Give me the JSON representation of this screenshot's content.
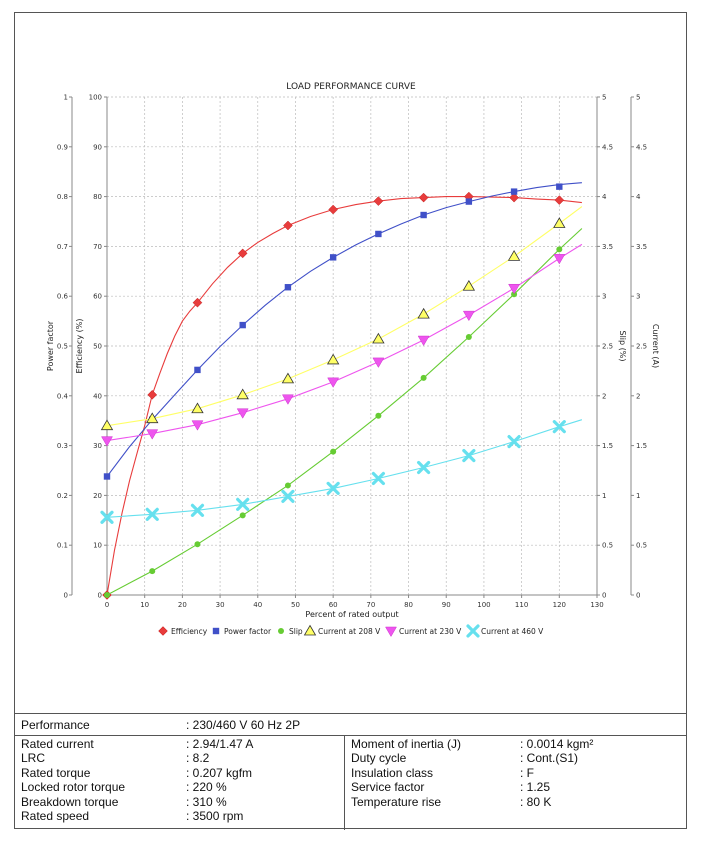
{
  "chart_data": {
    "type": "line",
    "title": "LOAD PERFORMANCE CURVE",
    "xlabel": "Percent of rated output",
    "xlim": [
      0,
      130
    ],
    "x_ticks": [
      "0",
      "10",
      "20",
      "30",
      "40",
      "50",
      "60",
      "70",
      "80",
      "90",
      "100",
      "110",
      "120",
      "130"
    ],
    "axes": {
      "power_factor": {
        "label": "Power factor",
        "ticks": [
          "0",
          "0.1",
          "0.2",
          "0.3",
          "0.4",
          "0.5",
          "0.6",
          "0.7",
          "0.8",
          "0.9",
          "1"
        ],
        "range": [
          0,
          1
        ]
      },
      "efficiency": {
        "label": "Efficiency (%)",
        "ticks": [
          "0",
          "10",
          "20",
          "30",
          "40",
          "50",
          "60",
          "70",
          "80",
          "90",
          "100"
        ],
        "range": [
          0,
          100
        ]
      },
      "slip": {
        "label": "Slip (%)",
        "ticks": [
          "0",
          "0.5",
          "1",
          "1.5",
          "2",
          "2.5",
          "3",
          "3.5",
          "4",
          "4.5",
          "5"
        ],
        "range": [
          0,
          5
        ]
      },
      "current": {
        "label": "Current (A)",
        "ticks": [
          "0",
          "0.5",
          "1",
          "1.5",
          "2",
          "2.5",
          "3",
          "3.5",
          "4",
          "4.5",
          "5"
        ],
        "range": [
          0,
          5
        ]
      }
    },
    "grid": true,
    "legend_position": "bottom",
    "series": [
      {
        "name": "Efficiency",
        "axis": "efficiency",
        "color": "#e83c3c",
        "marker": "diamond",
        "x": [
          0,
          12,
          24,
          36,
          48,
          60,
          72,
          84,
          96,
          108,
          120
        ],
        "y": [
          0,
          40.2,
          58.7,
          68.6,
          74.2,
          77.4,
          79.1,
          79.8,
          80.0,
          79.8,
          79.3
        ],
        "curve_x": [
          0,
          2,
          4,
          6,
          8,
          10,
          12,
          14,
          16,
          18,
          20,
          22,
          24,
          28,
          32,
          36,
          40,
          44,
          48,
          54,
          60,
          66,
          72,
          78,
          84,
          90,
          96,
          102,
          108,
          114,
          120,
          126
        ],
        "curve_y": [
          0,
          9,
          16.5,
          23,
          28.6,
          34,
          40.2,
          44.5,
          48.5,
          52,
          55,
          57,
          58.7,
          62.5,
          65.8,
          68.6,
          70.8,
          72.6,
          74.2,
          76,
          77.4,
          78.4,
          79.1,
          79.6,
          79.8,
          80,
          80,
          79.9,
          79.8,
          79.5,
          79.3,
          78.8
        ]
      },
      {
        "name": "Power factor",
        "axis": "power_factor",
        "color": "#4050c8",
        "marker": "square",
        "x": [
          0,
          12,
          24,
          36,
          48,
          60,
          72,
          84,
          96,
          108,
          120
        ],
        "y": [
          0.238,
          0.352,
          0.452,
          0.542,
          0.618,
          0.678,
          0.725,
          0.763,
          0.79,
          0.81,
          0.82
        ],
        "curve_x": [
          0,
          6,
          12,
          18,
          24,
          30,
          36,
          42,
          48,
          54,
          60,
          66,
          72,
          78,
          84,
          90,
          96,
          102,
          108,
          114,
          120,
          126
        ],
        "curve_y": [
          0.238,
          0.298,
          0.352,
          0.402,
          0.452,
          0.499,
          0.542,
          0.582,
          0.618,
          0.65,
          0.678,
          0.703,
          0.725,
          0.745,
          0.763,
          0.778,
          0.79,
          0.801,
          0.81,
          0.818,
          0.824,
          0.828
        ]
      },
      {
        "name": "Slip",
        "axis": "slip",
        "color": "#66cc33",
        "marker": "circle",
        "x": [
          0,
          12,
          24,
          36,
          48,
          60,
          72,
          84,
          96,
          108,
          120
        ],
        "y": [
          0,
          0.24,
          0.51,
          0.8,
          1.1,
          1.44,
          1.8,
          2.18,
          2.59,
          3.02,
          3.47
        ],
        "curve_x": [
          0,
          12,
          24,
          36,
          48,
          60,
          72,
          84,
          96,
          108,
          120,
          126
        ],
        "curve_y": [
          0,
          0.24,
          0.51,
          0.8,
          1.1,
          1.44,
          1.8,
          2.18,
          2.59,
          3.02,
          3.47,
          3.68
        ]
      },
      {
        "name": "Current at 208 V",
        "axis": "current",
        "color": "#ffff66",
        "marker": "triangle-up",
        "x": [
          0,
          12,
          24,
          36,
          48,
          60,
          72,
          84,
          96,
          108,
          120
        ],
        "y": [
          1.7,
          1.77,
          1.87,
          2.01,
          2.17,
          2.36,
          2.57,
          2.82,
          3.1,
          3.4,
          3.73
        ],
        "curve_x": [
          0,
          12,
          24,
          36,
          48,
          60,
          72,
          84,
          96,
          108,
          120,
          126
        ],
        "curve_y": [
          1.7,
          1.77,
          1.87,
          2.01,
          2.17,
          2.36,
          2.57,
          2.82,
          3.1,
          3.4,
          3.73,
          3.9
        ]
      },
      {
        "name": "Current at 230 V",
        "axis": "current",
        "color": "#ee55ee",
        "marker": "triangle-down",
        "x": [
          0,
          12,
          24,
          36,
          48,
          60,
          72,
          84,
          96,
          108,
          120
        ],
        "y": [
          1.55,
          1.62,
          1.71,
          1.83,
          1.97,
          2.14,
          2.34,
          2.56,
          2.81,
          3.08,
          3.38
        ],
        "curve_x": [
          0,
          12,
          24,
          36,
          48,
          60,
          72,
          84,
          96,
          108,
          120,
          126
        ],
        "curve_y": [
          1.55,
          1.62,
          1.71,
          1.83,
          1.97,
          2.14,
          2.34,
          2.56,
          2.81,
          3.08,
          3.38,
          3.52
        ]
      },
      {
        "name": "Current at 460 V",
        "axis": "current",
        "color": "#66e0ee",
        "marker": "x",
        "x": [
          0,
          12,
          24,
          36,
          48,
          60,
          72,
          84,
          96,
          108,
          120
        ],
        "y": [
          0.78,
          0.81,
          0.85,
          0.91,
          0.99,
          1.07,
          1.17,
          1.28,
          1.4,
          1.54,
          1.69
        ],
        "curve_x": [
          0,
          12,
          24,
          36,
          48,
          60,
          72,
          84,
          96,
          108,
          120,
          126
        ],
        "curve_y": [
          0.78,
          0.81,
          0.85,
          0.91,
          0.99,
          1.07,
          1.17,
          1.28,
          1.4,
          1.54,
          1.69,
          1.76
        ]
      }
    ]
  },
  "specs": {
    "performance_label": "Performance",
    "performance_value": ": 230/460 V 60 Hz 2P",
    "left": [
      {
        "label": "Rated current",
        "value": ": 2.94/1.47 A"
      },
      {
        "label": "LRC",
        "value": ": 8.2"
      },
      {
        "label": "Rated torque",
        "value": ": 0.207 kgfm"
      },
      {
        "label": "Locked rotor torque",
        "value": ": 220 %"
      },
      {
        "label": "Breakdown torque",
        "value": ": 310 %"
      },
      {
        "label": "Rated speed",
        "value": ": 3500 rpm"
      }
    ],
    "right": [
      {
        "label": "Moment of inertia (J)",
        "value": ": 0.0014 kgm²"
      },
      {
        "label": "Duty cycle",
        "value": ": Cont.(S1)"
      },
      {
        "label": "Insulation class",
        "value": ": F"
      },
      {
        "label": "Service factor",
        "value": ": 1.25"
      },
      {
        "label": "Temperature rise",
        "value": ": 80 K"
      }
    ]
  }
}
